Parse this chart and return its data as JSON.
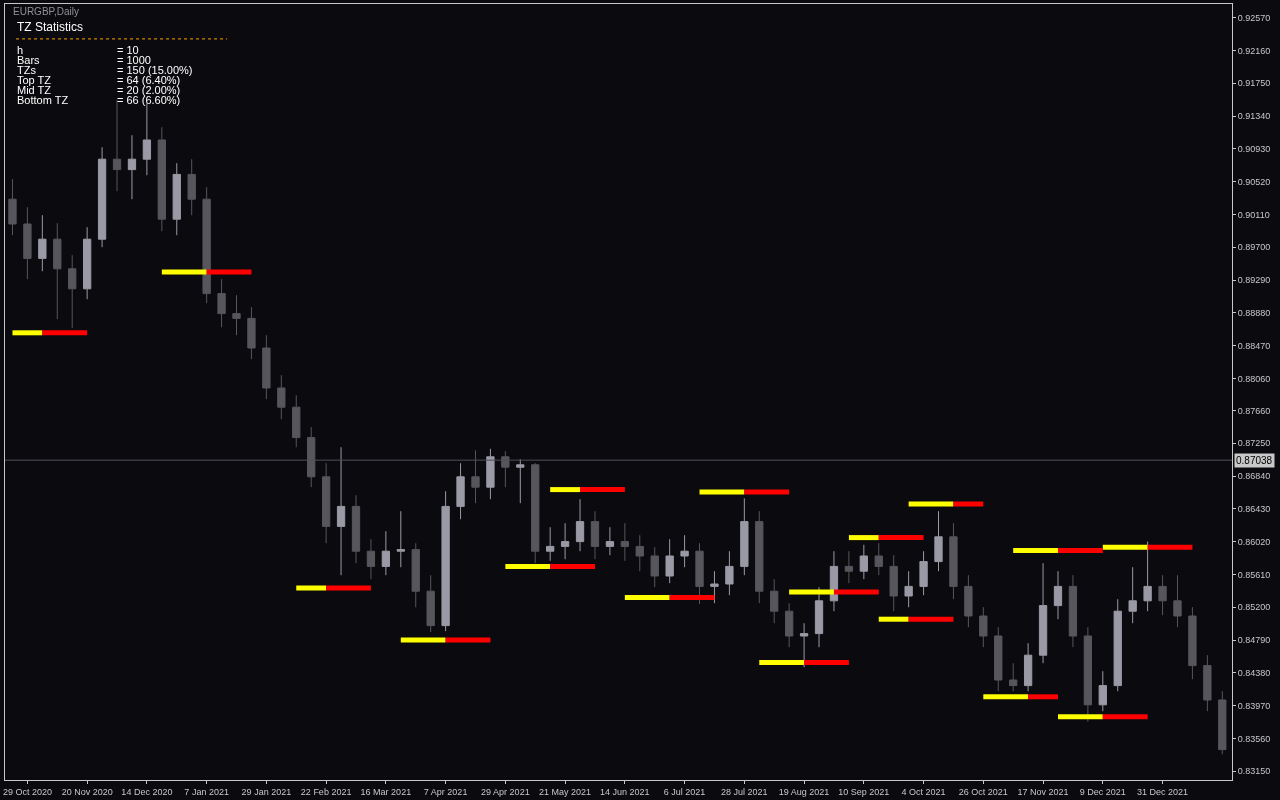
{
  "chart_data": {
    "type": "candlestick",
    "title": "EURGBP,Daily",
    "annotations": [
      "TZ Statistics",
      "h",
      "= 10",
      "Bars",
      "= 1000",
      "TZs",
      "= 150 (15.00%)",
      "Top TZ",
      "= 64 (6.40%)",
      "Mid TZ",
      "= 20 (2.00%)",
      "Bottom TZ",
      "= 66 (6.60%)"
    ],
    "categories": [
      null,
      "29 Oct 2020",
      null,
      null,
      null,
      "20 Nov 2020",
      null,
      null,
      null,
      "14 Dec 2020",
      null,
      null,
      null,
      "7 Jan 2021",
      null,
      null,
      null,
      "29 Jan 2021",
      null,
      null,
      null,
      "22 Feb 2021",
      null,
      null,
      null,
      "16 Mar 2021",
      null,
      null,
      null,
      "7 Apr 2021",
      null,
      null,
      null,
      "29 Apr 2021",
      null,
      null,
      null,
      "21 May 2021",
      null,
      null,
      null,
      "14 Jun 2021",
      null,
      null,
      null,
      "6 Jul 2021",
      null,
      null,
      null,
      "28 Jul 2021",
      null,
      null,
      null,
      "19 Aug 2021",
      null,
      null,
      null,
      "10 Sep 2021",
      null,
      null,
      null,
      "4 Oct 2021",
      null,
      null,
      null,
      "26 Oct 2021",
      null,
      null,
      null,
      "17 Nov 2021",
      null,
      null,
      null,
      "9 Dec 2021",
      null,
      null,
      null,
      "31 Dec 2021",
      null,
      null,
      null,
      null
    ],
    "series": [
      {
        "type": "line",
        "color": "#ffff00",
        "values": [
          0.8863,
          0.8863,
          0.8863,
          null,
          null,
          null,
          null,
          null,
          null,
          null,
          null,
          null,
          null,
          null,
          null,
          null,
          null,
          null,
          null,
          null,
          null,
          null,
          null,
          null,
          null,
          null,
          0.8479,
          0.8479,
          0.8479,
          0.8479,
          null,
          null,
          null,
          null,
          null,
          null,
          null,
          null,
          null,
          null,
          null,
          0.8532,
          0.8532,
          0.8532,
          0.8532,
          null,
          null,
          null,
          null,
          null,
          null,
          null,
          0.8539,
          0.8539,
          0.8539,
          0.8539,
          null,
          null,
          null,
          null,
          0.8649,
          0.8649,
          0.8649,
          0.8649,
          null,
          null,
          null,
          null,
          null,
          null,
          0.8383,
          0.8383,
          0.8383,
          0.8383,
          null,
          null,
          null,
          null,
          null,
          null,
          null,
          null
        ]
      },
      {
        "type": "line",
        "color": "#ff0000",
        "values": [
          null,
          null,
          0.8863,
          0.8863,
          0.8863,
          0.8863,
          null,
          null,
          null,
          null,
          null,
          null,
          null,
          null,
          null,
          null,
          null,
          null,
          null,
          null,
          null,
          null,
          null,
          null,
          null,
          null,
          null,
          null,
          null,
          0.8479,
          0.8479,
          0.8479,
          0.8479,
          null,
          null,
          null,
          null,
          null,
          null,
          null,
          null,
          null,
          null,
          null,
          0.8532,
          0.8532,
          0.8532,
          0.8532,
          null,
          null,
          null,
          null,
          null,
          null,
          null,
          0.8539,
          0.8539,
          0.8539,
          0.8539,
          null,
          null,
          null,
          null,
          0.8649,
          0.8649,
          0.8649,
          null,
          null,
          null,
          null,
          null,
          null,
          null,
          0.8383,
          0.8383,
          0.8383,
          0.8383,
          null,
          null,
          null,
          null,
          null
        ]
      },
      {
        "type": "line",
        "color": "#ffff00",
        "values": [
          null,
          null,
          null,
          null,
          null,
          null,
          null,
          null,
          null,
          null,
          0.8939,
          0.8939,
          0.8939,
          0.8939,
          null,
          null,
          null,
          null,
          null,
          null,
          null,
          null,
          null,
          null,
          null,
          null,
          null,
          null,
          null,
          null,
          null,
          null,
          null,
          0.8571,
          0.8571,
          0.8571,
          0.8571,
          null,
          null,
          null,
          null,
          null,
          null,
          null,
          null,
          null,
          0.8664,
          0.8664,
          0.8664,
          0.8664,
          null,
          null,
          null,
          null,
          null,
          null,
          0.8607,
          0.8607,
          0.8607,
          null,
          null,
          null,
          null,
          null,
          null,
          0.8408,
          0.8408,
          0.8408,
          0.8408,
          null,
          null,
          null,
          null,
          0.8595,
          0.8595,
          0.8595,
          0.8595,
          null,
          null,
          null,
          null,
          null
        ]
      },
      {
        "type": "line",
        "color": "#ff0000",
        "values": [
          null,
          null,
          null,
          null,
          null,
          null,
          null,
          null,
          null,
          null,
          null,
          null,
          null,
          0.8939,
          0.8939,
          0.8939,
          0.8939,
          null,
          null,
          null,
          null,
          null,
          null,
          null,
          null,
          null,
          null,
          null,
          null,
          null,
          null,
          null,
          null,
          null,
          null,
          null,
          0.8571,
          0.8571,
          0.8571,
          0.8571,
          null,
          null,
          null,
          null,
          null,
          null,
          null,
          null,
          null,
          0.8664,
          0.8664,
          0.8664,
          0.8664,
          null,
          null,
          null,
          null,
          null,
          0.8607,
          0.8607,
          0.8607,
          0.8607,
          null,
          null,
          null,
          null,
          null,
          null,
          0.8408,
          0.8408,
          0.8408,
          null,
          null,
          null,
          null,
          null,
          0.8595,
          0.8595,
          0.8595,
          0.8595,
          null,
          null
        ]
      },
      {
        "type": "line",
        "color": "#ffff00",
        "values": [
          null,
          null,
          null,
          null,
          null,
          null,
          null,
          null,
          null,
          null,
          null,
          null,
          null,
          null,
          null,
          null,
          null,
          null,
          null,
          0.8544,
          0.8544,
          0.8544,
          null,
          null,
          null,
          null,
          null,
          null,
          null,
          null,
          null,
          null,
          null,
          null,
          null,
          null,
          0.8667,
          0.8667,
          0.8667,
          null,
          null,
          null,
          null,
          null,
          null,
          null,
          null,
          null,
          null,
          null,
          0.8451,
          0.8451,
          0.8451,
          0.8451,
          null,
          null,
          null,
          null,
          0.8505,
          0.8505,
          0.8505,
          null,
          null,
          null,
          null,
          null,
          null,
          0.8591,
          0.8591,
          0.8591,
          0.8591,
          null,
          null,
          null,
          null,
          null,
          null,
          null,
          null,
          null,
          null,
          null
        ]
      },
      {
        "type": "line",
        "color": "#ff0000",
        "values": [
          null,
          null,
          null,
          null,
          null,
          null,
          null,
          null,
          null,
          null,
          null,
          null,
          null,
          null,
          null,
          null,
          null,
          null,
          null,
          null,
          null,
          0.8544,
          0.8544,
          0.8544,
          0.8544,
          null,
          null,
          null,
          null,
          null,
          null,
          null,
          null,
          null,
          null,
          null,
          null,
          null,
          0.8667,
          0.8667,
          0.8667,
          0.8667,
          null,
          null,
          null,
          null,
          null,
          null,
          null,
          null,
          null,
          null,
          null,
          0.8451,
          0.8451,
          0.8451,
          0.8451,
          null,
          null,
          null,
          0.8505,
          0.8505,
          0.8505,
          0.8505,
          null,
          null,
          null,
          null,
          null,
          null,
          0.8591,
          0.8591,
          0.8591,
          0.8591,
          null,
          null,
          null,
          null,
          null,
          null,
          null,
          null
        ]
      },
      {
        "colors": [
          "#56565c",
          "#56565c",
          "#9a9aa6",
          "#56565c",
          "#56565c",
          "#9a9aa6",
          "#9a9aa6",
          "#56565c",
          "#9a9aa6",
          "#9a9aa6",
          "#56565c",
          "#9a9aa6",
          "#56565c",
          "#56565c",
          "#56565c",
          "#56565c",
          "#56565c",
          "#56565c",
          "#56565c",
          "#56565c",
          "#56565c",
          "#56565c",
          "#9a9aa6",
          "#56565c",
          "#56565c",
          "#9a9aa6",
          "#9a9aa6",
          "#56565c",
          "#56565c",
          "#9a9aa6",
          "#9a9aa6",
          "#56565c",
          "#9a9aa6",
          "#56565c",
          "#9a9aa6",
          "#56565c",
          "#9a9aa6",
          "#9a9aa6",
          "#9a9aa6",
          "#56565c",
          "#9a9aa6",
          "#56565c",
          "#56565c",
          "#56565c",
          "#9a9aa6",
          "#9a9aa6",
          "#56565c",
          "#9a9aa6",
          "#9a9aa6",
          "#9a9aa6",
          "#56565c",
          "#56565c",
          "#56565c",
          "#9a9aa6",
          "#9a9aa6",
          "#9a9aa6",
          "#56565c",
          "#9a9aa6",
          "#56565c",
          "#56565c",
          "#9a9aa6",
          "#9a9aa6",
          "#9a9aa6",
          "#56565c",
          "#56565c",
          "#56565c",
          "#56565c",
          "#56565c",
          "#9a9aa6",
          "#9a9aa6",
          "#9a9aa6",
          "#56565c",
          "#56565c",
          "#9a9aa6",
          "#9a9aa6",
          "#9a9aa6",
          "#9a9aa6",
          "#56565c",
          "#56565c",
          "#56565c",
          "#56565c",
          "#56565c"
        ],
        "ohlc": [
          [
            0.903,
            0.9055,
            0.8985,
            0.8999
          ],
          [
            0.8999,
            0.902,
            0.893,
            0.8956
          ],
          [
            0.8956,
            0.901,
            0.894,
            0.898
          ],
          [
            0.898,
            0.9,
            0.888,
            0.8943
          ],
          [
            0.8943,
            0.896,
            0.8869,
            0.8918
          ],
          [
            0.8918,
            0.8995,
            0.8905,
            0.898
          ],
          [
            0.898,
            0.9095,
            0.897,
            0.908
          ],
          [
            0.908,
            0.9154,
            0.904,
            0.9067
          ],
          [
            0.9067,
            0.911,
            0.903,
            0.908
          ],
          [
            0.908,
            0.915,
            0.906,
            0.9104
          ],
          [
            0.9104,
            0.912,
            0.899,
            0.9005
          ],
          [
            0.9005,
            0.9075,
            0.8985,
            0.9061
          ],
          [
            0.9061,
            0.908,
            0.901,
            0.903
          ],
          [
            0.903,
            0.9045,
            0.89,
            0.8912
          ],
          [
            0.8912,
            0.893,
            0.887,
            0.8887
          ],
          [
            0.8887,
            0.891,
            0.886,
            0.8881
          ],
          [
            0.8881,
            0.8895,
            0.883,
            0.8844
          ],
          [
            0.8844,
            0.886,
            0.878,
            0.8794
          ],
          [
            0.8794,
            0.881,
            0.8755,
            0.877
          ],
          [
            0.877,
            0.8785,
            0.872,
            0.8732
          ],
          [
            0.8732,
            0.8745,
            0.867,
            0.8683
          ],
          [
            0.8683,
            0.87,
            0.86,
            0.8621
          ],
          [
            0.8621,
            0.872,
            0.856,
            0.8646
          ],
          [
            0.8646,
            0.866,
            0.8575,
            0.859
          ],
          [
            0.859,
            0.8605,
            0.8555,
            0.8571
          ],
          [
            0.8571,
            0.8615,
            0.856,
            0.859
          ],
          [
            0.859,
            0.864,
            0.857,
            0.8592
          ],
          [
            0.8592,
            0.86,
            0.852,
            0.854
          ],
          [
            0.854,
            0.856,
            0.8489,
            0.8497
          ],
          [
            0.8497,
            0.8665,
            0.849,
            0.8646
          ],
          [
            0.8646,
            0.87,
            0.863,
            0.8683
          ],
          [
            0.8683,
            0.8716,
            0.865,
            0.867
          ],
          [
            0.867,
            0.8718,
            0.8655,
            0.8708
          ],
          [
            0.8708,
            0.8715,
            0.867,
            0.8695
          ],
          [
            0.8695,
            0.8705,
            0.865,
            0.8698
          ],
          [
            0.8698,
            0.87,
            0.8575,
            0.859
          ],
          [
            0.859,
            0.862,
            0.8578,
            0.8596
          ],
          [
            0.8596,
            0.8625,
            0.858,
            0.8602
          ],
          [
            0.8602,
            0.8655,
            0.859,
            0.8627
          ],
          [
            0.8627,
            0.864,
            0.858,
            0.8596
          ],
          [
            0.8596,
            0.862,
            0.8585,
            0.8602
          ],
          [
            0.8602,
            0.8625,
            0.8578,
            0.8596
          ],
          [
            0.8596,
            0.861,
            0.8565,
            0.8584
          ],
          [
            0.8584,
            0.8595,
            0.8545,
            0.8559
          ],
          [
            0.8559,
            0.8605,
            0.855,
            0.8584
          ],
          [
            0.8584,
            0.861,
            0.857,
            0.859
          ],
          [
            0.859,
            0.86,
            0.8524,
            0.8546
          ],
          [
            0.8546,
            0.8565,
            0.8525,
            0.8549
          ],
          [
            0.8549,
            0.859,
            0.8535,
            0.8571
          ],
          [
            0.8571,
            0.8656,
            0.856,
            0.8627
          ],
          [
            0.8627,
            0.864,
            0.8525,
            0.854
          ],
          [
            0.854,
            0.8555,
            0.85,
            0.8515
          ],
          [
            0.8515,
            0.8525,
            0.847,
            0.8484
          ],
          [
            0.8484,
            0.85,
            0.8445,
            0.8487
          ],
          [
            0.8487,
            0.8545,
            0.847,
            0.8528
          ],
          [
            0.8528,
            0.859,
            0.8515,
            0.8571
          ],
          [
            0.8571,
            0.859,
            0.855,
            0.8565
          ],
          [
            0.8565,
            0.8598,
            0.8555,
            0.8584
          ],
          [
            0.8584,
            0.86,
            0.856,
            0.8571
          ],
          [
            0.8571,
            0.8585,
            0.8515,
            0.8534
          ],
          [
            0.8534,
            0.8565,
            0.852,
            0.8546
          ],
          [
            0.8546,
            0.859,
            0.8535,
            0.8577
          ],
          [
            0.8577,
            0.864,
            0.8565,
            0.8608
          ],
          [
            0.8608,
            0.8625,
            0.853,
            0.8546
          ],
          [
            0.8546,
            0.856,
            0.8495,
            0.8509
          ],
          [
            0.8509,
            0.852,
            0.847,
            0.8484
          ],
          [
            0.8484,
            0.8495,
            0.8415,
            0.8429
          ],
          [
            0.8429,
            0.845,
            0.8415,
            0.8422
          ],
          [
            0.8422,
            0.8475,
            0.8415,
            0.846
          ],
          [
            0.846,
            0.8575,
            0.845,
            0.8522
          ],
          [
            0.8522,
            0.8565,
            0.8505,
            0.8546
          ],
          [
            0.8546,
            0.856,
            0.847,
            0.8484
          ],
          [
            0.8484,
            0.8495,
            0.8377,
            0.8398
          ],
          [
            0.8398,
            0.844,
            0.839,
            0.8422
          ],
          [
            0.8422,
            0.853,
            0.8415,
            0.8515
          ],
          [
            0.8515,
            0.857,
            0.85,
            0.8528
          ],
          [
            0.8528,
            0.8602,
            0.8515,
            0.8546
          ],
          [
            0.8546,
            0.856,
            0.851,
            0.8528
          ],
          [
            0.8528,
            0.856,
            0.8495,
            0.8509
          ],
          [
            0.8509,
            0.852,
            0.843,
            0.8447
          ],
          [
            0.8447,
            0.846,
            0.839,
            0.8404
          ],
          [
            0.8404,
            0.8415,
            0.8336,
            0.8342
          ]
        ]
      }
    ],
    "ylim": [
      0.8304,
      0.9274
    ],
    "yticks": [
      {
        "value": 0.9257,
        "label": "0.92570"
      },
      {
        "value": 0.9216,
        "label": "0.92160"
      },
      {
        "value": 0.9175,
        "label": "0.91750"
      },
      {
        "value": 0.9134,
        "label": "0.91340"
      },
      {
        "value": 0.9093,
        "label": "0.90930"
      },
      {
        "value": 0.9052,
        "label": "0.90520"
      },
      {
        "value": 0.9011,
        "label": "0.90110"
      },
      {
        "value": 0.897,
        "label": "0.89700"
      },
      {
        "value": 0.8929,
        "label": "0.89290"
      },
      {
        "value": 0.8888,
        "label": "0.88880"
      },
      {
        "value": 0.8847,
        "label": "0.88470"
      },
      {
        "value": 0.8806,
        "label": "0.88060"
      },
      {
        "value": 0.8766,
        "label": "0.87660"
      },
      {
        "value": 0.8725,
        "label": "0.87250"
      },
      {
        "value": 0.8684,
        "label": "0.86840"
      },
      {
        "value": 0.8643,
        "label": "0.86430"
      },
      {
        "value": 0.8602,
        "label": "0.86020"
      },
      {
        "value": 0.8561,
        "label": "0.85610"
      },
      {
        "value": 0.852,
        "label": "0.85200"
      },
      {
        "value": 0.8479,
        "label": "0.84790"
      },
      {
        "value": 0.8438,
        "label": "0.84380"
      },
      {
        "value": 0.8397,
        "label": "0.83970"
      },
      {
        "value": 0.8356,
        "label": "0.83560"
      },
      {
        "value": 0.8315,
        "label": "0.83150"
      }
    ],
    "ref_lines": [
      {
        "axis": "y",
        "value": 0.87038,
        "label": "0.87038",
        "color": "#505058"
      }
    ],
    "grid": false
  }
}
